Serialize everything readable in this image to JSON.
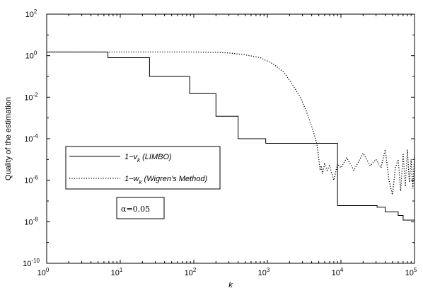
{
  "chart_data": {
    "type": "line",
    "title": "",
    "xlabel": "k",
    "ylabel": "Quality of the estimation",
    "xscale": "log",
    "yscale": "log",
    "xlim": [
      1,
      100000
    ],
    "ylim": [
      1e-10,
      100
    ],
    "grid": false,
    "legend_position": "center-left",
    "x_ticks": [
      {
        "base": "10",
        "exp": "0",
        "value": 1
      },
      {
        "base": "10",
        "exp": "1",
        "value": 10
      },
      {
        "base": "10",
        "exp": "2",
        "value": 100
      },
      {
        "base": "10",
        "exp": "3",
        "value": 1000
      },
      {
        "base": "10",
        "exp": "4",
        "value": 10000
      },
      {
        "base": "10",
        "exp": "5",
        "value": 100000
      }
    ],
    "y_ticks": [
      {
        "base": "10",
        "exp": "2",
        "value": 100
      },
      {
        "base": "10",
        "exp": "0",
        "value": 1
      },
      {
        "base": "10",
        "exp": "-2",
        "value": 0.01
      },
      {
        "base": "10",
        "exp": "-4",
        "value": 0.0001
      },
      {
        "base": "10",
        "exp": "-6",
        "value": 1e-06
      },
      {
        "base": "10",
        "exp": "-8",
        "value": 1e-08
      },
      {
        "base": "10",
        "exp": "-10",
        "value": 1e-10
      }
    ],
    "series": [
      {
        "legend_prefix": "1−v",
        "legend_sub": "k",
        "legend_suffix": " (LIMBO)",
        "style": "solid",
        "color": "#000000",
        "step": true,
        "x": [
          1,
          6.2,
          6.8,
          13.5,
          25,
          88,
          200,
          400,
          950,
          9000,
          31000,
          40000,
          60000,
          70000,
          100000
        ],
        "y": [
          1.5,
          1.5,
          0.8,
          0.8,
          0.1,
          0.015,
          0.0012,
          0.0001,
          6e-05,
          6e-08,
          5e-08,
          3e-08,
          2e-08,
          1.2e-08,
          6e-09
        ]
      },
      {
        "legend_prefix": "1−w",
        "legend_sub": "k",
        "legend_suffix": " (Wigren’s Method)",
        "style": "dotted",
        "color": "#000000",
        "step": false,
        "x": [
          1,
          10,
          30,
          60,
          100,
          200,
          300,
          500,
          800,
          1200,
          1700,
          2200,
          2800,
          3400,
          4000,
          4500,
          4800,
          5000,
          5200,
          5400,
          5600,
          6000,
          6500,
          7000,
          8000,
          9000,
          10000,
          12000,
          15000,
          20000,
          25000,
          30000,
          35000,
          40000,
          45000,
          50000,
          55000,
          60000,
          65000,
          70000,
          75000,
          80000,
          85000,
          90000,
          95000,
          100000
        ],
        "y": [
          1.5,
          1.5,
          1.5,
          1.5,
          1.5,
          1.45,
          1.35,
          1.1,
          0.8,
          0.4,
          0.15,
          0.04,
          0.01,
          0.002,
          0.0004,
          0.0001,
          4e-05,
          1e-05,
          3e-06,
          5e-06,
          2e-06,
          6e-06,
          3e-06,
          5e-06,
          1e-06,
          6e-06,
          4e-06,
          1.2e-05,
          3e-06,
          2e-05,
          5e-06,
          1e-05,
          4e-06,
          3e-05,
          1e-06,
          2e-07,
          4e-06,
          1e-05,
          3e-07,
          2e-05,
          5e-07,
          3e-05,
          8e-07,
          1e-05,
          4e-07,
          1.5e-05
        ]
      }
    ],
    "annotation": {
      "prefix": "α",
      "text": "=0.05"
    }
  }
}
